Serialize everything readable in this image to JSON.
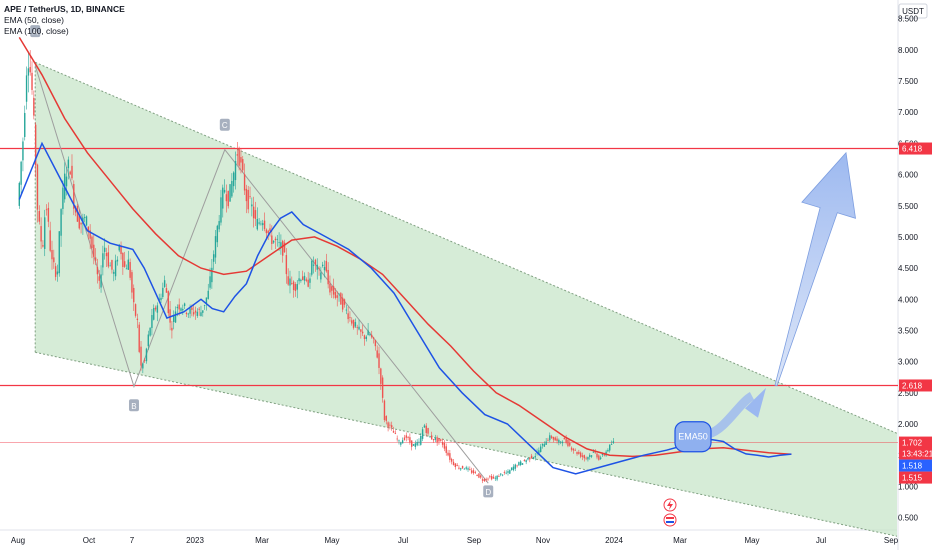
{
  "header": {
    "title": "APE / TetherUS, 1D, BINANCE",
    "indicators": [
      "EMA (50, close)",
      "EMA (100, close)"
    ],
    "currency": "USDT"
  },
  "price_tags": [
    {
      "label": "6.418",
      "color": "#f23645"
    },
    {
      "label": "2.618",
      "color": "#f23645"
    },
    {
      "label": "1.702",
      "color": "#f23645"
    },
    {
      "label": "13:43:21",
      "color": "#f23645"
    },
    {
      "label": "1.518",
      "color": "#2962ff"
    },
    {
      "label": "1.515",
      "color": "#f23645"
    }
  ],
  "annotations": {
    "points": [
      "A",
      "B",
      "C",
      "D"
    ],
    "ema_label": "EMA50"
  },
  "colors": {
    "channel_fill": "#c8e6c9",
    "ema50": "#1e53e5",
    "ema100": "#e53935",
    "level_line": "#f23645",
    "arrow": "#9bb8f0",
    "up_candle": "#26a69a",
    "down_candle": "#ef5350",
    "zigzag": "#9e9e9e"
  },
  "icons": [
    "flash-icon",
    "flag-icon"
  ],
  "chart_data": {
    "type": "candlestick",
    "symbol": "APE / TetherUS",
    "interval": "1D",
    "exchange": "BINANCE",
    "x_tick_labels": [
      "Aug",
      "Oct",
      "7",
      "2023",
      "Mar",
      "May",
      "Jul",
      "Sep",
      "Nov",
      "2024",
      "Mar",
      "May",
      "Jul",
      "Sep"
    ],
    "y_tick_labels": [
      "0.500",
      "1.000",
      "1.500",
      "2.000",
      "2.500",
      "3.000",
      "3.500",
      "4.000",
      "4.500",
      "5.000",
      "5.500",
      "6.000",
      "6.500",
      "7.000",
      "7.500",
      "8.000",
      "8.500"
    ],
    "y_range": [
      0.3,
      8.8
    ],
    "x_range_days": [
      -17,
      773
    ],
    "horizontal_levels": [
      6.418,
      2.618,
      1.702
    ],
    "last_price": 1.702,
    "ema50_last": 1.518,
    "ema100_last": 1.515,
    "series": [
      {
        "name": "EMA (50, close)",
        "points": [
          [
            0,
            5.6
          ],
          [
            20,
            6.5
          ],
          [
            40,
            5.8
          ],
          [
            60,
            5.1
          ],
          [
            80,
            4.9
          ],
          [
            100,
            4.8
          ],
          [
            110,
            4.5
          ],
          [
            120,
            4.1
          ],
          [
            130,
            3.7
          ],
          [
            145,
            3.8
          ],
          [
            160,
            4.0
          ],
          [
            170,
            3.85
          ],
          [
            180,
            3.8
          ],
          [
            190,
            4.05
          ],
          [
            200,
            4.25
          ],
          [
            210,
            4.7
          ],
          [
            220,
            5.05
          ],
          [
            230,
            5.3
          ],
          [
            240,
            5.4
          ],
          [
            250,
            5.2
          ],
          [
            270,
            5.0
          ],
          [
            290,
            4.8
          ],
          [
            310,
            4.5
          ],
          [
            330,
            4.1
          ],
          [
            350,
            3.5
          ],
          [
            370,
            2.9
          ],
          [
            390,
            2.5
          ],
          [
            410,
            2.15
          ],
          [
            430,
            2.0
          ],
          [
            450,
            1.65
          ],
          [
            470,
            1.3
          ],
          [
            490,
            1.2
          ],
          [
            510,
            1.3
          ],
          [
            530,
            1.4
          ],
          [
            550,
            1.5
          ],
          [
            570,
            1.58
          ],
          [
            590,
            1.68
          ],
          [
            610,
            1.75
          ],
          [
            620,
            1.72
          ],
          [
            630,
            1.6
          ],
          [
            640,
            1.52
          ],
          [
            650,
            1.5
          ],
          [
            660,
            1.47
          ],
          [
            670,
            1.5
          ],
          [
            680,
            1.518
          ]
        ]
      },
      {
        "name": "EMA (100, close)",
        "points": [
          [
            0,
            8.2
          ],
          [
            20,
            7.6
          ],
          [
            40,
            6.9
          ],
          [
            60,
            6.35
          ],
          [
            80,
            5.9
          ],
          [
            100,
            5.45
          ],
          [
            120,
            5.05
          ],
          [
            140,
            4.7
          ],
          [
            160,
            4.5
          ],
          [
            180,
            4.4
          ],
          [
            200,
            4.45
          ],
          [
            220,
            4.7
          ],
          [
            240,
            4.95
          ],
          [
            260,
            5.0
          ],
          [
            280,
            4.85
          ],
          [
            300,
            4.65
          ],
          [
            320,
            4.4
          ],
          [
            340,
            4.0
          ],
          [
            360,
            3.6
          ],
          [
            380,
            3.25
          ],
          [
            400,
            2.85
          ],
          [
            420,
            2.5
          ],
          [
            440,
            2.3
          ],
          [
            460,
            2.05
          ],
          [
            480,
            1.8
          ],
          [
            500,
            1.6
          ],
          [
            520,
            1.5
          ],
          [
            540,
            1.48
          ],
          [
            560,
            1.5
          ],
          [
            580,
            1.55
          ],
          [
            600,
            1.6
          ],
          [
            620,
            1.62
          ],
          [
            640,
            1.58
          ],
          [
            660,
            1.54
          ],
          [
            680,
            1.515
          ]
        ]
      },
      {
        "name": "price",
        "points": [
          [
            0,
            5.5
          ],
          [
            5,
            6.6
          ],
          [
            8,
            7.7
          ],
          [
            10,
            7.9
          ],
          [
            13,
            7.3
          ],
          [
            16,
            6.2
          ],
          [
            18,
            5.3
          ],
          [
            22,
            4.8
          ],
          [
            25,
            5.6
          ],
          [
            30,
            4.6
          ],
          [
            35,
            4.4
          ],
          [
            38,
            5.4
          ],
          [
            42,
            6.0
          ],
          [
            46,
            6.2
          ],
          [
            50,
            5.5
          ],
          [
            55,
            5.2
          ],
          [
            60,
            5.3
          ],
          [
            64,
            5.0
          ],
          [
            68,
            4.6
          ],
          [
            72,
            4.2
          ],
          [
            76,
            4.9
          ],
          [
            80,
            4.6
          ],
          [
            85,
            4.4
          ],
          [
            90,
            4.9
          ],
          [
            94,
            4.5
          ],
          [
            98,
            4.6
          ],
          [
            102,
            3.9
          ],
          [
            106,
            3.6
          ],
          [
            108,
            2.9
          ],
          [
            112,
            3.0
          ],
          [
            116,
            3.5
          ],
          [
            120,
            3.8
          ],
          [
            125,
            4.0
          ],
          [
            130,
            4.3
          ],
          [
            135,
            3.5
          ],
          [
            140,
            3.9
          ],
          [
            145,
            3.9
          ],
          [
            150,
            3.8
          ],
          [
            156,
            3.8
          ],
          [
            162,
            3.8
          ],
          [
            168,
            4.1
          ],
          [
            174,
            4.9
          ],
          [
            178,
            5.4
          ],
          [
            182,
            5.8
          ],
          [
            186,
            5.6
          ],
          [
            190,
            6.0
          ],
          [
            194,
            6.4
          ],
          [
            198,
            6.0
          ],
          [
            202,
            5.6
          ],
          [
            206,
            5.5
          ],
          [
            210,
            5.2
          ],
          [
            216,
            5.3
          ],
          [
            222,
            5.0
          ],
          [
            228,
            4.9
          ],
          [
            234,
            4.8
          ],
          [
            238,
            4.3
          ],
          [
            244,
            4.2
          ],
          [
            250,
            4.4
          ],
          [
            255,
            4.2
          ],
          [
            260,
            4.6
          ],
          [
            266,
            4.4
          ],
          [
            270,
            4.6
          ],
          [
            274,
            4.2
          ],
          [
            278,
            4.1
          ],
          [
            284,
            4.0
          ],
          [
            290,
            3.8
          ],
          [
            296,
            3.6
          ],
          [
            300,
            3.5
          ],
          [
            305,
            3.4
          ],
          [
            310,
            3.45
          ],
          [
            316,
            3.2
          ],
          [
            320,
            2.7
          ],
          [
            323,
            2.1
          ],
          [
            326,
            2.0
          ],
          [
            330,
            1.9
          ],
          [
            336,
            1.7
          ],
          [
            342,
            1.8
          ],
          [
            348,
            1.65
          ],
          [
            354,
            1.7
          ],
          [
            358,
            2.0
          ],
          [
            362,
            1.8
          ],
          [
            368,
            1.75
          ],
          [
            374,
            1.7
          ],
          [
            378,
            1.55
          ],
          [
            382,
            1.4
          ],
          [
            388,
            1.3
          ],
          [
            394,
            1.3
          ],
          [
            398,
            1.25
          ],
          [
            404,
            1.2
          ],
          [
            410,
            1.1
          ],
          [
            416,
            1.15
          ],
          [
            420,
            1.12
          ],
          [
            426,
            1.2
          ],
          [
            432,
            1.22
          ],
          [
            436,
            1.3
          ],
          [
            440,
            1.35
          ],
          [
            446,
            1.4
          ],
          [
            450,
            1.45
          ],
          [
            456,
            1.5
          ],
          [
            460,
            1.6
          ],
          [
            466,
            1.75
          ],
          [
            470,
            1.8
          ],
          [
            476,
            1.7
          ],
          [
            480,
            1.75
          ],
          [
            484,
            1.7
          ],
          [
            488,
            1.62
          ],
          [
            492,
            1.55
          ],
          [
            496,
            1.5
          ],
          [
            500,
            1.45
          ],
          [
            504,
            1.5
          ],
          [
            508,
            1.55
          ],
          [
            512,
            1.45
          ],
          [
            516,
            1.5
          ],
          [
            520,
            1.6
          ],
          [
            524,
            1.702
          ]
        ]
      }
    ],
    "trend_channel": {
      "upper": {
        "from": [
          14,
          7.8
        ],
        "to": [
          773,
          1.85
        ]
      },
      "lower": {
        "from": [
          14,
          3.15
        ],
        "to": [
          773,
          0.2
        ]
      }
    },
    "pivots": [
      {
        "label": "A",
        "day": 14,
        "price": 8.3
      },
      {
        "label": "B",
        "day": 101,
        "price": 2.3
      },
      {
        "label": "C",
        "day": 181,
        "price": 6.8
      },
      {
        "label": "D",
        "day": 413,
        "price": 0.92
      }
    ]
  }
}
